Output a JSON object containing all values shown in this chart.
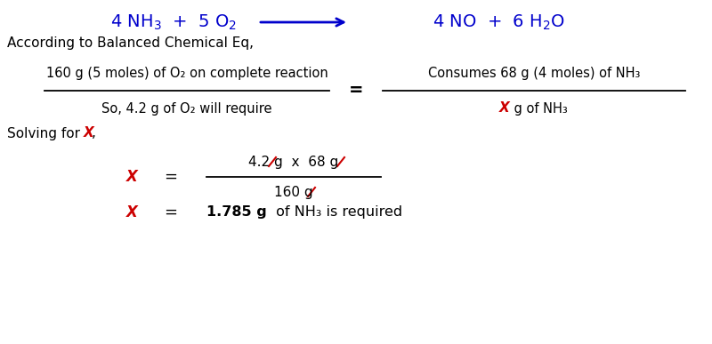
{
  "bg_color": "#ffffff",
  "blue": "#0000CC",
  "red": "#CC0000",
  "black": "#000000",
  "balanced_label": "According to Balanced Chemical Eq,",
  "frac_num_left": "160 g (5 moles) of O₂ on complete reaction",
  "frac_den_left": "So, 4.2 g of O₂ will require",
  "frac_num_right": "Consumes 68 g (4 moles) of NH₃",
  "frac_den_right_X": "X",
  "frac_den_right_rest": " g of NH₃",
  "solving_label_pre": "Solving for ",
  "solving_X": "X",
  "solving_label_post": ",",
  "numerator_expr": "4.2 g  x  68 g",
  "denominator_expr": "160 g",
  "result_bold": "1.785 g",
  "result_rest": " of NH₃ is required",
  "figsize": [
    8.0,
    3.87
  ],
  "dpi": 100
}
